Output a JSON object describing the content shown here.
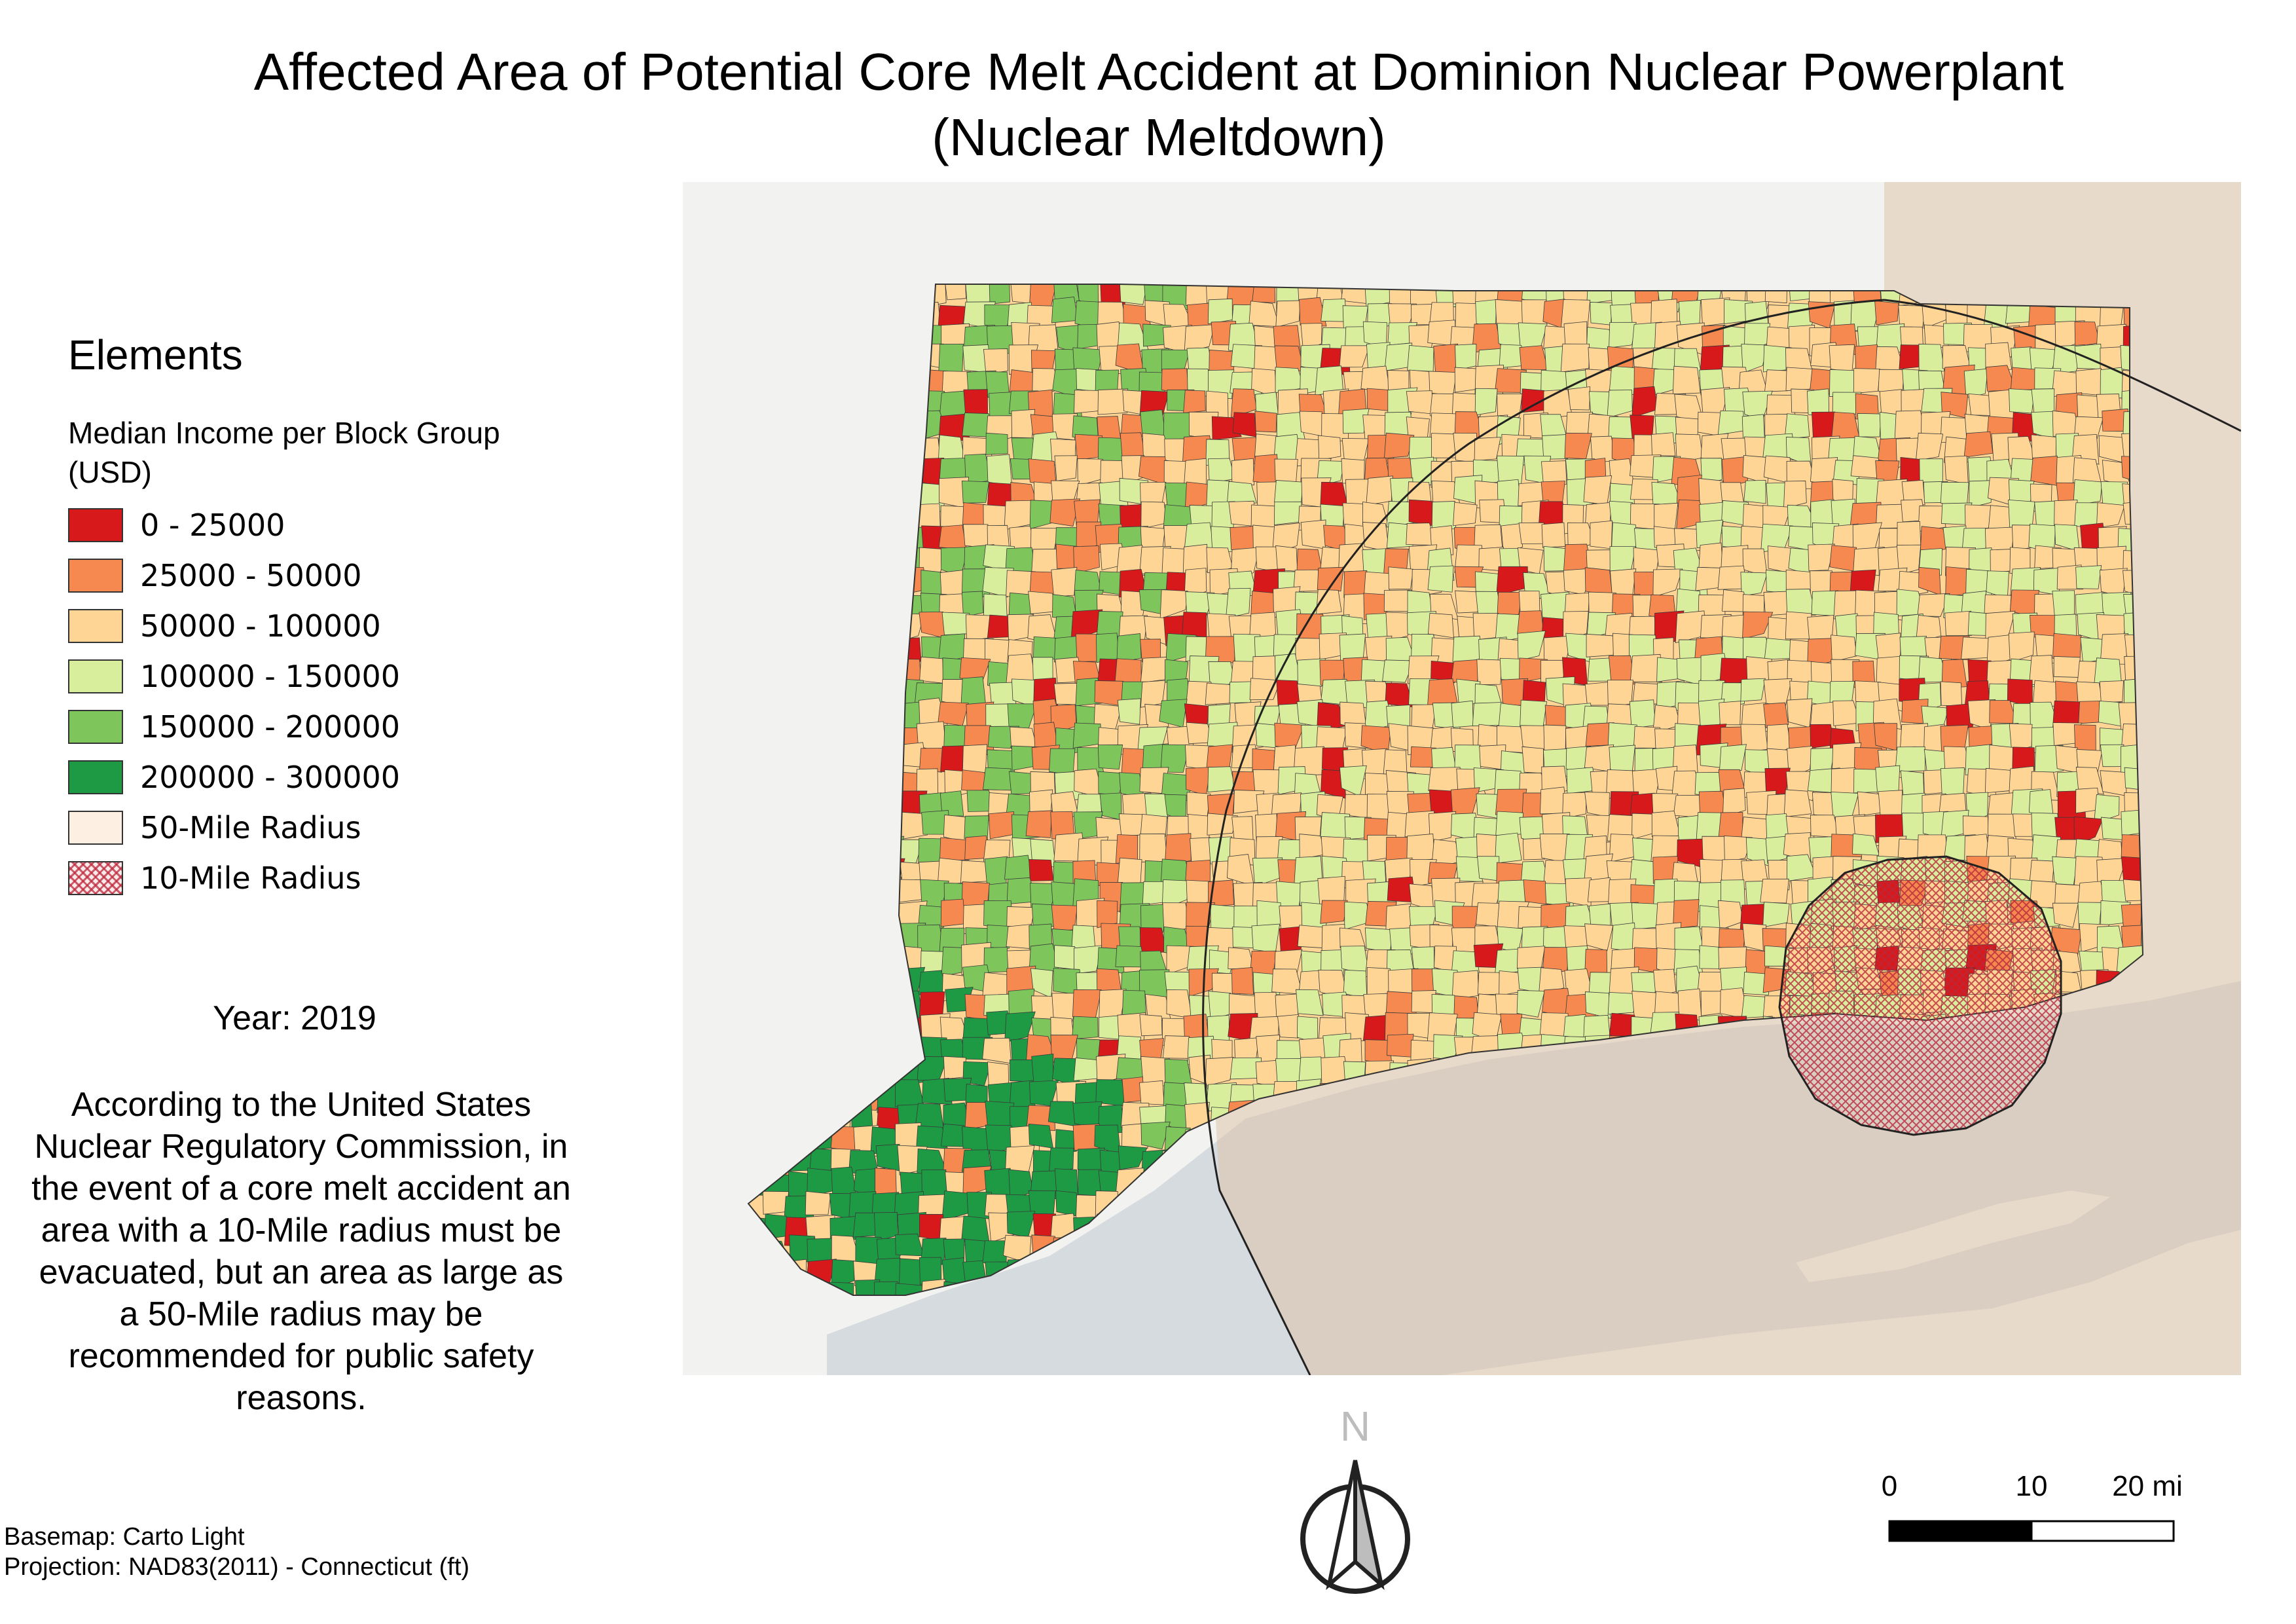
{
  "title": "Affected Area of Potential Core Melt Accident at Dominion Nuclear Powerplant (Nuclear Meltdown)",
  "legend": {
    "heading": "Elements",
    "subheading": "Median Income per Block Group (USD)",
    "items": [
      {
        "label": "0 - 25000",
        "color": "#d7191c"
      },
      {
        "label": "25000 - 50000",
        "color": "#f6894f"
      },
      {
        "label": "50000 - 100000",
        "color": "#fed594"
      },
      {
        "label": "100000 - 150000",
        "color": "#d9ee9d"
      },
      {
        "label": "150000 - 200000",
        "color": "#7ec65b"
      },
      {
        "label": "200000 - 300000",
        "color": "#1e9a44"
      },
      {
        "label": "50-Mile Radius",
        "color": "#fdefe1"
      },
      {
        "label": "10-Mile Radius",
        "color": "#fbeaea"
      }
    ]
  },
  "year_label": "Year: 2019",
  "note": "According to the United States Nuclear Regulatory Commission, in the event of a core melt accident an area with a 10-Mile radius must be evacuated, but an area as large as a 50-Mile radius may be recommended for public safety reasons.",
  "credits": {
    "basemap": "Basemap: Carto Light",
    "projection": "Projection: NAD83(2011) - Connecticut (ft)"
  },
  "north_arrow": {
    "label": "N"
  },
  "scale_bar": {
    "ticks": [
      "0",
      "10",
      "20 mi"
    ]
  },
  "map": {
    "water_color": "#d6dbdf",
    "land_color": "#f2f2f0",
    "buffer_50_color": "#dcc1a3",
    "buffer_10_color": "#d98c98"
  }
}
